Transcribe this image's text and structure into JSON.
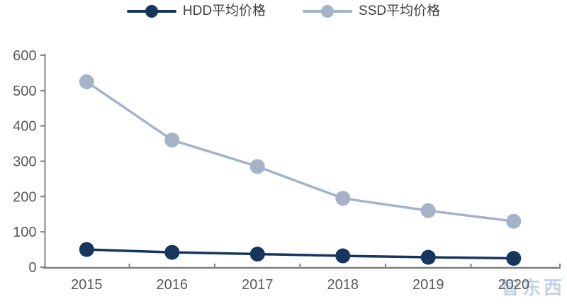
{
  "legend": {
    "position": "top-center"
  },
  "chart_data": {
    "type": "line",
    "title": "",
    "categories": [
      "2015",
      "2016",
      "2017",
      "2018",
      "2019",
      "2020"
    ],
    "series": [
      {
        "name": "HDD平均价格",
        "color": "#17365d",
        "values": [
          50,
          42,
          37,
          32,
          28,
          25
        ]
      },
      {
        "name": "SSD平均价格",
        "color": "#a4b3c7",
        "values": [
          525,
          360,
          285,
          195,
          160,
          130
        ]
      }
    ],
    "xlabel": "",
    "ylabel": "",
    "ylim": [
      0,
      600
    ],
    "yticks": [
      0,
      100,
      200,
      300,
      400,
      500,
      600
    ],
    "grid": false,
    "legend_position": "top-center",
    "axis_color": "#808080",
    "tick_label_color": "#595959",
    "marker": "circle"
  },
  "watermark": {
    "text": "智东西",
    "color": "#b9cbe0"
  }
}
